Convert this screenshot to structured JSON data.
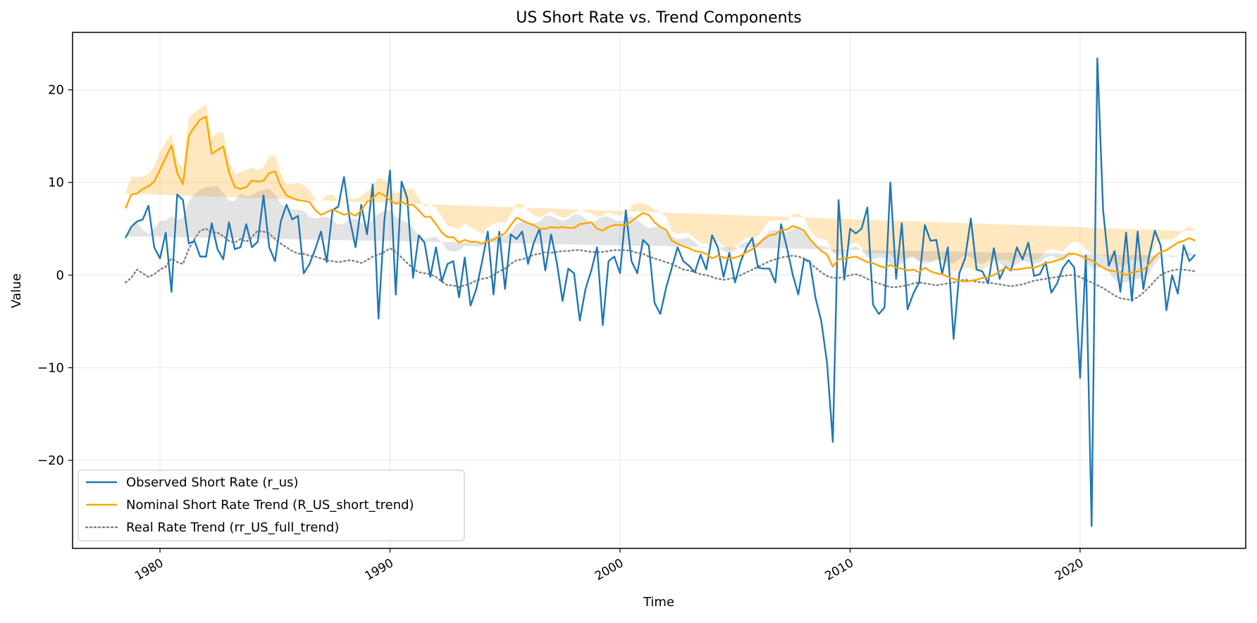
{
  "chart_data": {
    "type": "line",
    "title": "US Short Rate vs. Trend Components",
    "xlabel": "Time",
    "ylabel": "Value",
    "xlim": [
      1976.2,
      2027.2
    ],
    "ylim": [
      -29.5,
      26.2
    ],
    "x_ticks": [
      1980,
      1990,
      2000,
      2010,
      2020
    ],
    "x_tick_labels": [
      "1980",
      "1990",
      "2000",
      "2010",
      "2020"
    ],
    "y_ticks": [
      -20,
      -10,
      0,
      10,
      20
    ],
    "y_tick_labels": [
      "−20",
      "−10",
      "0",
      "10",
      "20"
    ],
    "grid": true,
    "legend_position": "lower-left",
    "x_start": 1978.5,
    "x_step": 0.25,
    "series": [
      {
        "name": "Observed Short Rate (r_us)",
        "color": "#1f77b4",
        "style": "solid",
        "values": [
          4.0,
          5.2,
          5.8,
          6.0,
          7.5,
          3.0,
          1.8,
          4.6,
          -1.8,
          8.7,
          8.1,
          3.4,
          3.7,
          2.0,
          2.0,
          5.6,
          2.8,
          1.7,
          5.7,
          2.8,
          3.0,
          5.5,
          3.0,
          3.6,
          8.6,
          3.0,
          1.5,
          5.8,
          7.6,
          6.0,
          6.4,
          0.2,
          1.2,
          2.8,
          4.7,
          1.4,
          7.0,
          7.4,
          10.6,
          6.0,
          3.0,
          7.6,
          4.4,
          9.8,
          -4.7,
          5.8,
          11.3,
          -2.1,
          10.1,
          8.3,
          -0.3,
          4.3,
          3.5,
          -0.2,
          3.0,
          -0.7,
          1.2,
          1.5,
          -2.4,
          1.9,
          -3.3,
          -1.5,
          1.4,
          4.7,
          -2.1,
          4.7,
          -1.5,
          4.4,
          3.9,
          4.7,
          1.2,
          3.5,
          5.0,
          0.5,
          4.4,
          1.4,
          -2.8,
          0.7,
          0.2,
          -4.9,
          -1.5,
          0.5,
          3.0,
          -5.4,
          1.5,
          2.0,
          0.2,
          7.0,
          1.5,
          0.2,
          3.8,
          3.2,
          -3.0,
          -4.2,
          -1.4,
          0.8,
          3.0,
          1.5,
          1.0,
          0.3,
          2.2,
          0.6,
          4.3,
          3.0,
          -0.2,
          2.4,
          -0.8,
          1.5,
          3.0,
          4.0,
          0.8,
          0.7,
          0.7,
          -0.8,
          5.5,
          3.0,
          0.1,
          -2.1,
          1.7,
          1.5,
          -2.5,
          -5.0,
          -9.5,
          -18.0,
          8.1,
          -0.5,
          5.0,
          4.5,
          5.0,
          7.3,
          -3.2,
          -4.2,
          -3.5,
          10.0,
          -0.4,
          5.6,
          -3.7,
          -2.0,
          -0.8,
          5.4,
          3.7,
          3.8,
          0.1,
          3.0,
          -6.9,
          0.2,
          1.8,
          6.1,
          0.6,
          0.4,
          -0.9,
          2.9,
          -0.4,
          0.9,
          0.5,
          3.0,
          1.7,
          3.5,
          -0.1,
          0.1,
          1.4,
          -1.9,
          -0.9,
          0.8,
          1.6,
          0.8,
          -11.1,
          2.1,
          -27.1,
          23.4,
          7.0,
          1.0,
          2.6,
          -1.8,
          4.6,
          -2.8,
          4.7,
          -1.5,
          2.1,
          4.8,
          3.2,
          -3.8,
          0.0,
          -2.0,
          3.2,
          1.5,
          2.2
        ]
      },
      {
        "name": "Nominal Short Rate Trend (R_US_short_trend)",
        "color": "#ffa500",
        "style": "solid",
        "values": [
          7.2,
          8.7,
          8.8,
          9.3,
          9.6,
          10.1,
          11.4,
          12.7,
          14.0,
          11.0,
          9.8,
          15.0,
          16.0,
          16.8,
          17.1,
          13.1,
          13.5,
          13.9,
          11.1,
          9.5,
          9.3,
          9.5,
          10.2,
          10.1,
          10.2,
          11.0,
          11.2,
          9.6,
          8.6,
          8.3,
          8.1,
          8.0,
          7.9,
          7.0,
          6.5,
          6.8,
          7.1,
          6.8,
          6.5,
          6.7,
          6.4,
          7.0,
          7.9,
          8.3,
          8.9,
          8.6,
          8.1,
          7.7,
          7.9,
          7.6,
          7.6,
          7.0,
          6.3,
          6.3,
          5.5,
          4.6,
          4.1,
          4.1,
          3.5,
          3.8,
          3.6,
          3.6,
          3.4,
          3.7,
          3.8,
          4.2,
          4.5,
          5.4,
          6.2,
          5.9,
          5.6,
          5.4,
          5.0,
          5.0,
          5.2,
          5.1,
          5.2,
          5.1,
          5.1,
          5.5,
          5.6,
          5.7,
          5.0,
          4.8,
          5.2,
          5.4,
          5.4,
          5.4,
          5.8,
          6.3,
          6.7,
          6.5,
          5.7,
          5.2,
          4.9,
          3.7,
          3.4,
          3.1,
          2.9,
          2.6,
          2.5,
          2.3,
          1.8,
          2.1,
          1.9,
          1.8,
          1.9,
          2.1,
          2.5,
          2.8,
          3.3,
          3.9,
          4.3,
          4.4,
          4.9,
          4.9,
          5.3,
          5.1,
          4.8,
          3.9,
          3.2,
          2.6,
          2.2,
          0.9,
          1.7,
          1.8,
          1.9,
          2.0,
          1.7,
          1.4,
          1.3,
          1.0,
          0.8,
          1.1,
          0.8,
          0.7,
          0.5,
          0.6,
          0.3,
          0.8,
          0.4,
          0.2,
          0.1,
          -0.2,
          -0.4,
          -0.6,
          -0.7,
          -0.6,
          -0.5,
          -0.3,
          -0.2,
          0.0,
          0.4,
          0.8,
          0.6,
          0.6,
          0.7,
          0.8,
          0.8,
          1.0,
          1.3,
          1.4,
          1.6,
          1.8,
          2.3,
          2.3,
          2.1,
          1.8,
          1.6,
          1.2,
          0.8,
          0.5,
          0.4,
          0.3,
          0.0,
          0.3,
          0.4,
          0.6,
          1.2,
          2.0,
          2.5,
          2.7,
          3.1,
          3.5,
          3.7,
          4.0,
          3.7,
          3.4,
          2.9
        ]
      },
      {
        "name": "Real Rate Trend (rr_US_full_trend)",
        "color": "#808080",
        "style": "dotted",
        "values": [
          -0.8,
          -0.3,
          0.6,
          0.2,
          -0.2,
          0.1,
          0.6,
          0.9,
          1.8,
          1.4,
          1.2,
          2.8,
          3.9,
          4.8,
          5.0,
          4.6,
          4.6,
          4.2,
          3.7,
          3.5,
          3.9,
          3.6,
          4.1,
          4.8,
          4.7,
          4.5,
          3.9,
          3.4,
          3.0,
          2.6,
          2.3,
          2.3,
          2.1,
          2.0,
          1.8,
          1.6,
          1.5,
          1.4,
          1.5,
          1.6,
          1.5,
          1.3,
          1.6,
          2.0,
          2.2,
          2.5,
          2.9,
          2.5,
          1.9,
          1.3,
          0.7,
          0.3,
          0.2,
          0.1,
          -0.2,
          -0.7,
          -1.1,
          -1.1,
          -1.3,
          -1.1,
          -0.9,
          -0.6,
          -0.4,
          -0.3,
          0.0,
          0.4,
          0.7,
          1.2,
          1.6,
          1.7,
          1.9,
          2.2,
          2.3,
          2.5,
          2.4,
          2.5,
          2.6,
          2.6,
          2.7,
          2.7,
          2.6,
          2.5,
          2.5,
          2.5,
          2.6,
          2.7,
          2.7,
          2.7,
          2.6,
          2.4,
          2.3,
          2.0,
          1.8,
          1.6,
          1.4,
          1.2,
          0.9,
          0.6,
          0.5,
          0.3,
          0.1,
          0.0,
          -0.2,
          -0.4,
          -0.5,
          -0.4,
          -0.3,
          0.0,
          0.3,
          0.6,
          0.9,
          1.2,
          1.5,
          1.7,
          1.9,
          2.0,
          2.1,
          2.0,
          1.8,
          1.3,
          0.8,
          0.3,
          -0.1,
          -0.3,
          -0.3,
          -0.2,
          0.0,
          0.1,
          -0.1,
          -0.4,
          -0.7,
          -0.9,
          -1.1,
          -1.3,
          -1.3,
          -1.2,
          -1.1,
          -0.9,
          -0.8,
          -0.9,
          -1.0,
          -1.1,
          -1.0,
          -0.9,
          -0.8,
          -0.6,
          -0.5,
          -0.6,
          -0.7,
          -0.8,
          -0.8,
          -0.9,
          -1.0,
          -1.1,
          -1.2,
          -1.1,
          -1.0,
          -0.8,
          -0.6,
          -0.5,
          -0.4,
          -0.3,
          -0.2,
          -0.1,
          0.0,
          0.0,
          -0.2,
          -0.5,
          -0.8,
          -1.1,
          -1.4,
          -1.8,
          -2.2,
          -2.5,
          -2.6,
          -2.7,
          -2.4,
          -1.9,
          -1.3,
          -0.6,
          0.0,
          0.3,
          0.5,
          0.6,
          0.6,
          0.5,
          0.4,
          0.3
        ]
      }
    ],
    "bands": [
      {
        "series": "Nominal Short Rate Trend (R_US_short_trend)",
        "color": "#ffa500",
        "opacity": 0.25,
        "half_width_start": 1.6,
        "half_width_end": 1.0
      },
      {
        "series": "Real Rate Trend (rr_US_full_trend)",
        "color": "#808080",
        "opacity": 0.22,
        "half_width_start": 5.0,
        "half_width_end": 1.6
      }
    ]
  }
}
